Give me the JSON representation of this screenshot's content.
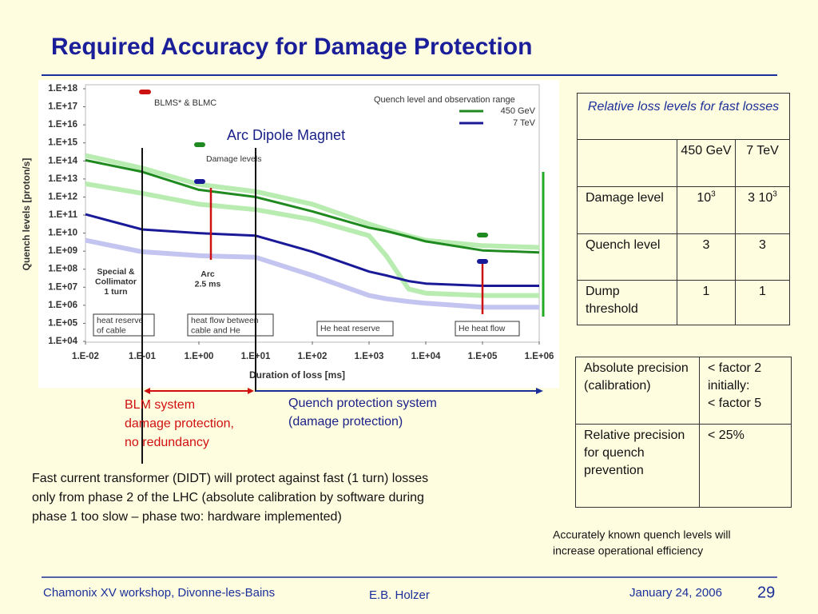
{
  "title": "Required Accuracy for Damage Protection",
  "chart_data": {
    "type": "line",
    "xscale": "log",
    "yscale": "log",
    "xlabel": "Duration of loss [ms]",
    "ylabel": "Quench levels [proton/s]",
    "xlim": [
      0.01,
      1000000.0
    ],
    "ylim": [
      10000.0,
      1e+18
    ],
    "xticks": [
      {
        "value": 0.01,
        "label": "1.E-02"
      },
      {
        "value": 0.1,
        "label": "1.E-01"
      },
      {
        "value": 1,
        "label": "1.E+00"
      },
      {
        "value": 10,
        "label": "1.E+01"
      },
      {
        "value": 100,
        "label": "1.E+02"
      },
      {
        "value": 1000,
        "label": "1.E+03"
      },
      {
        "value": 10000,
        "label": "1.E+04"
      },
      {
        "value": 100000,
        "label": "1.E+05"
      },
      {
        "value": 1000000,
        "label": "1.E+06"
      }
    ],
    "yticks": [
      {
        "value": 10000.0,
        "label": "1.E+04"
      },
      {
        "value": 100000.0,
        "label": "1.E+05"
      },
      {
        "value": 1000000.0,
        "label": "1.E+06"
      },
      {
        "value": 10000000.0,
        "label": "1.E+07"
      },
      {
        "value": 100000000.0,
        "label": "1.E+08"
      },
      {
        "value": 1000000000.0,
        "label": "1.E+09"
      },
      {
        "value": 10000000000.0,
        "label": "1.E+10"
      },
      {
        "value": 100000000000.0,
        "label": "1.E+11"
      },
      {
        "value": 1000000000000.0,
        "label": "1.E+12"
      },
      {
        "value": 10000000000000.0,
        "label": "1.E+13"
      },
      {
        "value": 100000000000000.0,
        "label": "1.E+14"
      },
      {
        "value": 1000000000000000.0,
        "label": "1.E+15"
      },
      {
        "value": 1e+16,
        "label": "1.E+16"
      },
      {
        "value": 1e+17,
        "label": "1.E+17"
      },
      {
        "value": 1e+18,
        "label": "1.E+18"
      }
    ],
    "legend_title": "Quench level and observation range",
    "x": [
      0.01,
      0.1,
      1,
      10,
      100,
      1000,
      2000,
      5000,
      10000,
      100000,
      1000000
    ],
    "series": [
      {
        "color": "#b8ecb0",
        "values": [
          200000000000000.0,
          40000000000000.0,
          5000000000000.0,
          2000000000000.0,
          400000000000.0,
          32000000000.0,
          16000000000.0,
          7000000000.0,
          4000000000.0,
          2000000000.0,
          1600000000.0
        ]
      },
      {
        "color": "#b8ecb0",
        "values": [
          5400000000000.0,
          1600000000000.0,
          400000000000.0,
          200000000000.0,
          56000000000.0,
          7200000000.0,
          560000000.0,
          7900000.0,
          4700000.0,
          3500000.0,
          3500000.0
        ]
      },
      {
        "color": "#c4c4f0",
        "values": [
          4000000000.0,
          930000000.0,
          560000000.0,
          460000000.0,
          45000000.0,
          3500000.0,
          2300000.0,
          1600000.0,
          1300000.0,
          790000.0,
          790000.0
        ]
      },
      {
        "name": "450 GeV",
        "color": "#1f8a1f",
        "values": [
          110000000000000.0,
          25000000000000.0,
          2500000000000.0,
          1000000000000.0,
          160000000000.0,
          20000000000.0,
          13000000000.0,
          6300000000.0,
          3500000000.0,
          1100000000.0,
          850000000.0
        ]
      },
      {
        "name": "7 TeV",
        "color": "#1a1a99",
        "values": [
          110000000000.0,
          16000000000.0,
          10000000000.0,
          7200000000.0,
          930000000.0,
          74000000.0,
          45000000.0,
          22000000.0,
          16000000.0,
          12000000.0,
          12000000.0
        ]
      }
    ],
    "annotations": [
      [
        "BLMS* & BLMC"
      ],
      [
        "Arc Dipole Magnet"
      ],
      [
        "Damage levels"
      ],
      [
        "Special &",
        "Collimator",
        "1 turn"
      ],
      [
        "Arc",
        "2.5 ms"
      ],
      [
        "heat reserve",
        "of cable"
      ],
      [
        "heat flow between",
        "cable and He"
      ],
      [
        "He heat reserve"
      ],
      [
        "He heat flow"
      ]
    ]
  },
  "blm_text": [
    "BLM system",
    "damage protection,",
    "no redundancy"
  ],
  "qps_text": [
    "Quench protection system",
    "(damage protection)"
  ],
  "paragraph": [
    "Fast current transformer (DIDT) will protect against fast (1 turn) losses",
    "only from phase 2 of the LHC (absolute calibration by software during",
    "phase 1 too slow – phase two: hardware implemented)"
  ],
  "note": [
    "Accurately known quench levels will",
    "increase operational efficiency"
  ],
  "table1": {
    "caption": "Relative loss levels for fast losses",
    "header": [
      "450 GeV",
      "7 TeV"
    ],
    "rows": [
      {
        "label": "Damage level",
        "cells": [
          {
            "base": "10",
            "exp": "3"
          },
          {
            "base": "3 10",
            "exp": "3"
          }
        ]
      },
      {
        "label": "Quench level",
        "cells": [
          "3",
          "3"
        ]
      },
      {
        "label": "Dump threshold",
        "cells": [
          "1",
          "1"
        ]
      }
    ]
  },
  "table2": {
    "rows": [
      {
        "label": "Absolute precision (calibration)",
        "value": [
          "< factor 2",
          "initially:",
          "< factor 5"
        ]
      },
      {
        "label": "Relative precision for quench prevention",
        "value": [
          "< 25%"
        ]
      }
    ]
  },
  "footer": {
    "left": "Chamonix XV workshop, Divonne-les-Bains",
    "center": "E.B. Holzer",
    "date": "January 24, 2006",
    "page": "29"
  }
}
